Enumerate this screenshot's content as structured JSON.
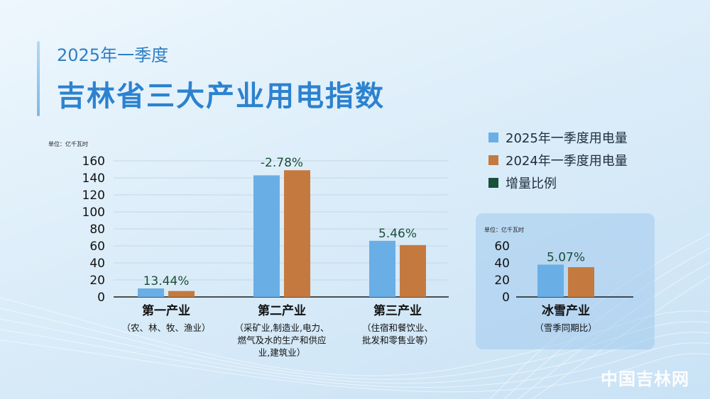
{
  "header": {
    "subtitle": "2025年一季度",
    "title": "吉林省三大产业用电指数"
  },
  "legend": [
    {
      "label": "2025年一季度用电量",
      "color": "#6aaee6"
    },
    {
      "label": "2024年一季度用电量",
      "color": "#c47a3f"
    },
    {
      "label": "增量比例",
      "color": "#1a4f3a"
    }
  ],
  "watermark": "中国吉林网",
  "chart_data": [
    {
      "type": "bar",
      "unit": "单位：亿千瓦时",
      "ylim": [
        0,
        160
      ],
      "yticks": [
        0,
        20,
        40,
        60,
        80,
        100,
        120,
        140,
        160
      ],
      "grid": true,
      "categories": [
        {
          "name": "第一产业",
          "desc": [
            "（农、林、牧、渔业）"
          ]
        },
        {
          "name": "第二产业",
          "desc": [
            "（采矿业,制造业,电力、",
            "燃气及水的生产和供应",
            "业,建筑业）"
          ]
        },
        {
          "name": "第三产业",
          "desc": [
            "（住宿和餐饮业、",
            "批发和零售业等）"
          ]
        }
      ],
      "series": [
        {
          "name": "2025年一季度用电量",
          "values": [
            10,
            143,
            66
          ],
          "color": "#6aaee6"
        },
        {
          "name": "2024年一季度用电量",
          "values": [
            7,
            149,
            61
          ],
          "color": "#c47a3f"
        }
      ],
      "growth_labels": [
        "13.44%",
        "-2.78%",
        "5.46%"
      ],
      "growth_color": "#1a4f3a"
    },
    {
      "type": "bar",
      "unit": "单位：亿千瓦时",
      "ylim": [
        0,
        60
      ],
      "yticks": [
        0,
        20,
        40,
        60
      ],
      "grid": true,
      "categories": [
        {
          "name": "冰雪产业",
          "desc": [
            "（雪季同期比）"
          ]
        }
      ],
      "series": [
        {
          "name": "2025年一季度用电量",
          "values": [
            38
          ],
          "color": "#6aaee6"
        },
        {
          "name": "2024年一季度用电量",
          "values": [
            35
          ],
          "color": "#c47a3f"
        }
      ],
      "growth_labels": [
        "5.07%"
      ],
      "growth_color": "#1a4f3a"
    }
  ]
}
